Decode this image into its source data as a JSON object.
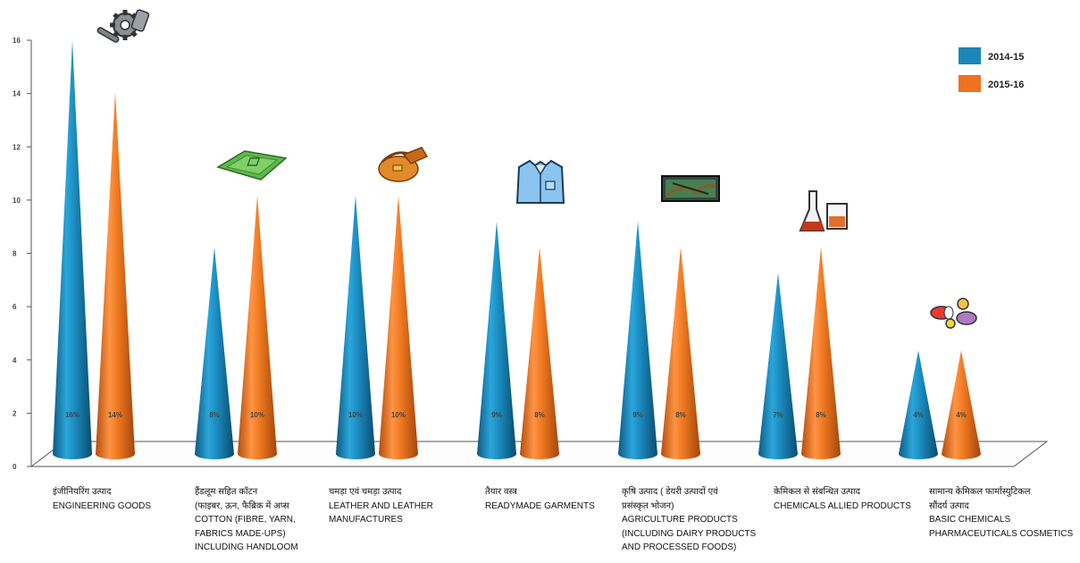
{
  "chart_data": {
    "type": "bar",
    "bar_shape": "cone",
    "ylim": [
      0,
      16
    ],
    "yticks": [
      "0",
      "2",
      "4",
      "6",
      "8",
      "10",
      "12",
      "14",
      "16"
    ],
    "categories": [
      {
        "hindi": "इंजीनियरिंग उत्पाद",
        "english": [
          "ENGINEERING GOODS"
        ],
        "icon": "gears-icon"
      },
      {
        "hindi": "हैंडलूम सहित कॉटन",
        "english": [
          "(फाइबर, ऊन, फैब्रिक में अप्स",
          "COTTON (FIBRE, YARN,",
          "FABRICS MADE-UPS)",
          "INCLUDING HANDLOOM"
        ],
        "icon": "fabric-icon"
      },
      {
        "hindi": "चमड़ा एवं चमड़ा उत्पाद",
        "english": [
          "LEATHER AND LEATHER",
          "MANUFACTURES"
        ],
        "icon": "leather-bag-icon"
      },
      {
        "hindi": "तैयार वस्त्र",
        "english": [
          "READYMADE GARMENTS"
        ],
        "icon": "shirt-icon"
      },
      {
        "hindi": "कृषि उत्पाद ( डेयरी उत्पादों एवं",
        "english": [
          "प्रसंस्कृत भोजन)",
          "AGRICULTURE PRODUCTS",
          "(INCLUDING DAIRY PRODUCTS",
          "AND PROCESSED FOODS)"
        ],
        "icon": "agriculture-icon"
      },
      {
        "hindi": "केमिकल से संबन्धित उत्पाद",
        "english": [
          "CHEMICALS ALLIED PRODUCTS"
        ],
        "icon": "flask-icon"
      },
      {
        "hindi": "सामान्य केमिकल फार्मास्युटिकल",
        "english": [
          "सौंदर्य उत्पाद",
          "BASIC CHEMICALS",
          "PHARMACEUTICALS COSMETICS"
        ],
        "icon": "pills-icon"
      }
    ],
    "series": [
      {
        "name": "2014-15",
        "color": "#1b86b8",
        "values": [
          16,
          8,
          10,
          9,
          9,
          7,
          4
        ],
        "labels": [
          "16%",
          "8%",
          "10%",
          "9%",
          "9%",
          "7%",
          "4%"
        ]
      },
      {
        "name": "2015-16",
        "color": "#ee7220",
        "values": [
          14,
          10,
          10,
          8,
          8,
          8,
          4
        ],
        "labels": [
          "14%",
          "10%",
          "10%",
          "8%",
          "8%",
          "8%",
          "4%"
        ]
      }
    ],
    "legend": "top-right",
    "grid": false
  }
}
